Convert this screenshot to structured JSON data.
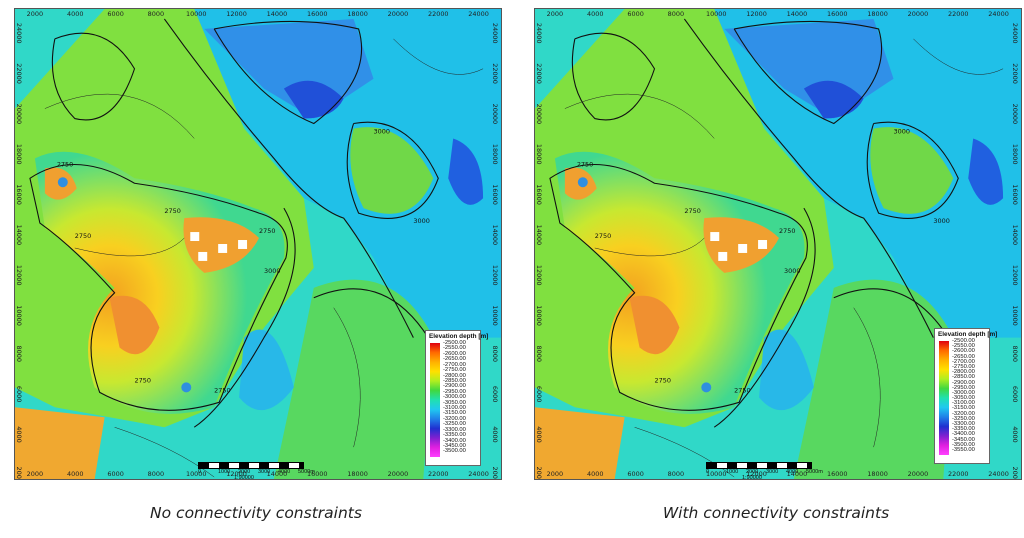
{
  "panels": [
    {
      "caption": "No connectivity constraints",
      "legend_title": "Elevation depth [m]",
      "legend_values": [
        "-2500.00",
        "-2550.00",
        "-2600.00",
        "-2650.00",
        "-2700.00",
        "-2750.00",
        "-2800.00",
        "-2850.00",
        "-2900.00",
        "-2950.00",
        "-3000.00",
        "-3050.00",
        "-3100.00",
        "-3150.00",
        "-3200.00",
        "-3250.00",
        "-3300.00",
        "-3350.00",
        "-3400.00",
        "-3450.00",
        "-3500.00"
      ],
      "scale_ratio": "1:90000",
      "contour_labels": [
        "2750",
        "2750",
        "2750",
        "2750",
        "3000",
        "3000",
        "3000",
        "2750",
        "2750"
      ]
    },
    {
      "caption": "With connectivity constraints",
      "legend_title": "Elevation depth [m]",
      "legend_values": [
        "-2500.00",
        "-2550.00",
        "-2600.00",
        "-2650.00",
        "-2700.00",
        "-2750.00",
        "-2800.00",
        "-2850.00",
        "-2900.00",
        "-2950.00",
        "-3000.00",
        "-3050.00",
        "-3100.00",
        "-3150.00",
        "-3200.00",
        "-3250.00",
        "-3300.00",
        "-3350.00",
        "-3400.00",
        "-3450.00",
        "-3500.00",
        "-3550.00"
      ],
      "scale_ratio": "1:90000",
      "contour_labels": [
        "2750",
        "2750",
        "2750",
        "2750",
        "3000",
        "3000",
        "3000",
        "2750",
        "2750"
      ]
    }
  ],
  "x_ticks": [
    "2000",
    "4000",
    "6000",
    "8000",
    "10000",
    "12000",
    "14000",
    "16000",
    "18000",
    "20000",
    "22000",
    "24000"
  ],
  "y_ticks": [
    "24000",
    "22000",
    "20000",
    "18000",
    "16000",
    "14000",
    "12000",
    "10000",
    "8000",
    "6000",
    "4000",
    "2000"
  ],
  "scale_labels": [
    "0",
    "1000",
    "2000",
    "3000",
    "4000",
    "5000m"
  ],
  "markers": {
    "wells_blue": "#2f8fe0",
    "wells_white": "#ffffff"
  }
}
